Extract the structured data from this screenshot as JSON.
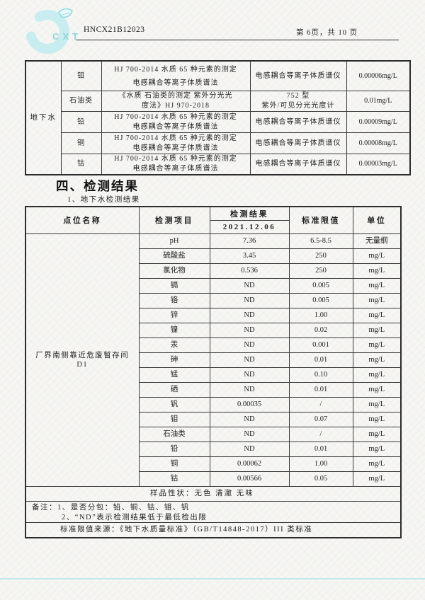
{
  "colors": {
    "accent_cyan": "#c7edf0",
    "logo_text_cyan": "#8fd4d9",
    "bottom_rule_cyan": "#bfe9ec",
    "ink": "#1f1f1f",
    "paper": "#f7f6f2"
  },
  "header": {
    "logo_text": "CXT",
    "report_no": "HNCX21B12023",
    "page_info": "第 6页，共 10 页"
  },
  "method_table": {
    "sample_type": "地下水",
    "rows": [
      {
        "analyte": "钼",
        "method": "HJ 700-2014 水质 65 种元素的测定\n电感耦合等离子体质谱法",
        "instrument": "电感耦合等离子体质谱仪",
        "limit": "0.00006mg/L"
      },
      {
        "analyte": "石油类",
        "method": "《水质 石油类的测定 紫外分光光\n度法》HJ 970-2018",
        "instrument": "752 型\n紫外/可见分光光度计",
        "limit": "0.01mg/L"
      },
      {
        "analyte": "铅",
        "method": "HJ 700-2014 水质 65 种元素的测定\n电感耦合等离子体质谱法",
        "instrument": "电感耦合等离子体质谱仪",
        "limit": "0.00009mg/L"
      },
      {
        "analyte": "铜",
        "method": "HJ 700-2014 水质 65 种元素的测定\n电感耦合等离子体质谱法",
        "instrument": "电感耦合等离子体质谱仪",
        "limit": "0.00008mg/L"
      },
      {
        "analyte": "钴",
        "method": "HJ 700-2014 水质 65 种元素的测定\n电感耦合等离子体质谱法",
        "instrument": "电感耦合等离子体质谱仪",
        "limit": "0.00003mg/L"
      }
    ]
  },
  "section": {
    "title": "四、检测结果",
    "subtitle": "1、地下水检测结果"
  },
  "result_table": {
    "headers": {
      "site": "点位名称",
      "item": "检测项目",
      "result": "检测结果",
      "date": "2021.12.06",
      "limit": "标准限值",
      "unit": "单位"
    },
    "site_name": "厂界南侧靠近危废暂存间",
    "site_code": "D1",
    "rows": [
      {
        "item": "pH",
        "result": "7.36",
        "limit": "6.5-8.5",
        "unit": "无量纲"
      },
      {
        "item": "硫酸盐",
        "result": "3.45",
        "limit": "250",
        "unit": "mg/L"
      },
      {
        "item": "氯化物",
        "result": "0.536",
        "limit": "250",
        "unit": "mg/L"
      },
      {
        "item": "镉",
        "result": "ND",
        "limit": "0.005",
        "unit": "mg/L"
      },
      {
        "item": "铬",
        "result": "ND",
        "limit": "0.005",
        "unit": "mg/L"
      },
      {
        "item": "锌",
        "result": "ND",
        "limit": "1.00",
        "unit": "mg/L"
      },
      {
        "item": "镍",
        "result": "ND",
        "limit": "0.02",
        "unit": "mg/L"
      },
      {
        "item": "汞",
        "result": "ND",
        "limit": "0.001",
        "unit": "mg/L"
      },
      {
        "item": "砷",
        "result": "ND",
        "limit": "0.01",
        "unit": "mg/L"
      },
      {
        "item": "锰",
        "result": "ND",
        "limit": "0.10",
        "unit": "mg/L"
      },
      {
        "item": "硒",
        "result": "ND",
        "limit": "0.01",
        "unit": "mg/L"
      },
      {
        "item": "钒",
        "result": "0.00035",
        "limit": "/",
        "unit": "mg/L"
      },
      {
        "item": "钼",
        "result": "ND",
        "limit": "0.07",
        "unit": "mg/L"
      },
      {
        "item": "石油类",
        "result": "ND",
        "limit": "/",
        "unit": "mg/L"
      },
      {
        "item": "铅",
        "result": "ND",
        "limit": "0.01",
        "unit": "mg/L"
      },
      {
        "item": "铜",
        "result": "0.00062",
        "limit": "1.00",
        "unit": "mg/L"
      },
      {
        "item": "钴",
        "result": "0.00566",
        "limit": "0.05",
        "unit": "mg/L"
      }
    ],
    "sample_state": "样品性状：无色 清澈 无味",
    "notes_line1": "备注：1、是否分包：铅、铜、钴、钼、钒",
    "notes_line2": "2、“ND”表示检测结果低于最低检出限",
    "source": "标准限值来源：《地下水质量标准》（GB/T14848-2017）III 类标准"
  }
}
